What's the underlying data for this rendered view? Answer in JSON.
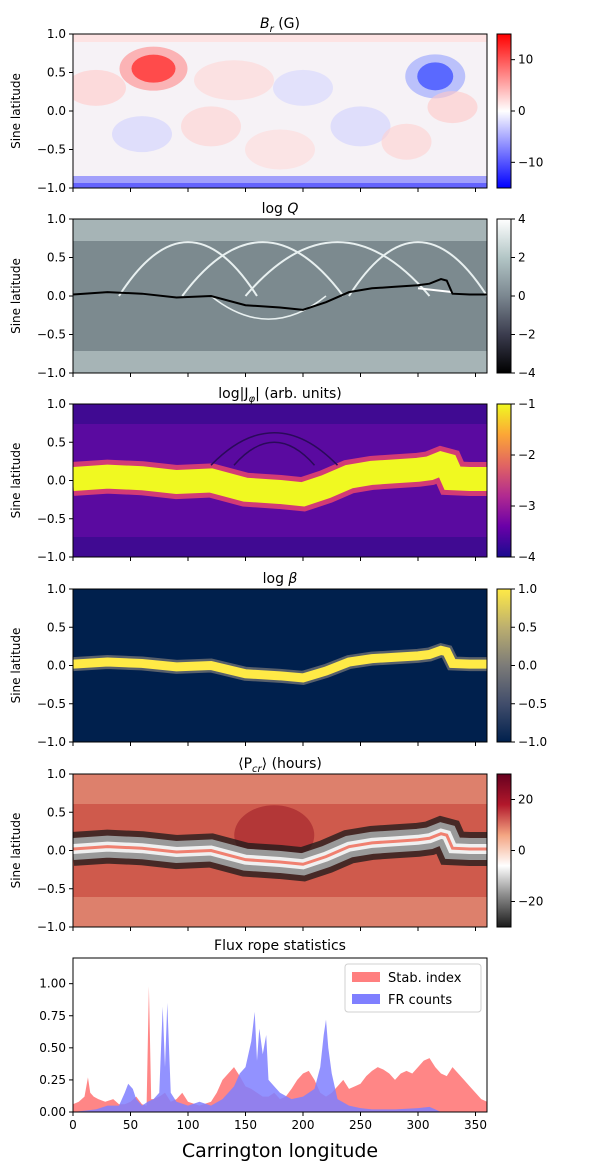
{
  "figure": {
    "panels": [
      {
        "id": "br",
        "title": "B_r (G)",
        "title_main": "B",
        "title_sub": "r",
        "title_rest": " (G)",
        "ylabel": "Sine latitude",
        "yticks": [
          "1.0",
          "0.5",
          "0.0",
          "−0.5",
          "−1.0"
        ],
        "colorbar": {
          "ticks": [
            "10",
            "0",
            "−10"
          ],
          "tick_values": [
            10,
            0,
            -10
          ],
          "range": [
            -15,
            15
          ],
          "colors": [
            "#0000ff",
            "#ffffff",
            "#ff0000"
          ]
        }
      },
      {
        "id": "logq",
        "title": "log Q",
        "title_main": "log ",
        "title_sub": "",
        "title_rest": "Q",
        "ylabel": "Sine latitude",
        "yticks": [
          "1.0",
          "0.5",
          "0.0",
          "−0.5",
          "−1.0"
        ],
        "colorbar": {
          "ticks": [
            "4",
            "2",
            "0",
            "−2",
            "−4"
          ],
          "tick_values": [
            4,
            2,
            0,
            -2,
            -4
          ],
          "range": [
            -4,
            4
          ],
          "colors": [
            "#000000",
            "#3b3c4e",
            "#7b8790",
            "#b3c6c6",
            "#ffffff"
          ]
        }
      },
      {
        "id": "jphi",
        "title": "log|J_φ| (arb. units)",
        "title_main": "log|J",
        "title_sub": "φ",
        "title_rest": "| (arb. units)",
        "ylabel": "Sine latitude",
        "yticks": [
          "1.0",
          "0.5",
          "0.0",
          "−0.5",
          "−1.0"
        ],
        "colorbar": {
          "ticks": [
            "−1",
            "−2",
            "−3",
            "−4"
          ],
          "tick_values": [
            -1,
            -2,
            -3,
            -4
          ],
          "range": [
            -4,
            -1
          ],
          "colors": [
            "#1a0b8f",
            "#6a00a8",
            "#b12a90",
            "#e16462",
            "#fca636",
            "#f0f921"
          ]
        }
      },
      {
        "id": "beta",
        "title": "log β",
        "title_main": "log ",
        "title_sub": "",
        "title_rest": "β",
        "ylabel": "Sine latitude",
        "yticks": [
          "1.0",
          "0.5",
          "0.0",
          "−0.5",
          "−1.0"
        ],
        "colorbar": {
          "ticks": [
            "1.0",
            "0.5",
            "0.0",
            "−0.5",
            "−1.0"
          ],
          "tick_values": [
            1,
            0.5,
            0,
            -0.5,
            -1
          ],
          "range": [
            -1,
            1
          ],
          "colors": [
            "#00204d",
            "#414d6b",
            "#7c7b78",
            "#bcaf6f",
            "#ffea46"
          ]
        }
      },
      {
        "id": "pcr",
        "title": "⟨P_cr⟩ (hours)",
        "title_main": "⟨P",
        "title_sub": "cr",
        "title_rest": "⟩ (hours)",
        "ylabel": "Sine latitude",
        "yticks": [
          "1.0",
          "0.5",
          "0.0",
          "−0.5",
          "−1.0"
        ],
        "colorbar": {
          "ticks": [
            "20",
            "0",
            "−20"
          ],
          "tick_values": [
            20,
            0,
            -20
          ],
          "range": [
            -30,
            30
          ],
          "colors": [
            "#1a1a1a",
            "#878787",
            "#ffffff",
            "#f4a582",
            "#b2182b",
            "#67001f"
          ]
        }
      }
    ],
    "stats": {
      "title": "Flux rope statistics",
      "xlabel": "Carrington longitude",
      "xticks": [
        "0",
        "50",
        "100",
        "150",
        "200",
        "250",
        "300",
        "350"
      ],
      "yticks": [
        "1.00",
        "0.75",
        "0.50",
        "0.25",
        "0.00"
      ]
    }
  },
  "chart_data": [
    {
      "type": "heatmap",
      "title": "B_r (G)",
      "ylabel": "Sine latitude",
      "xlim": [
        0,
        360
      ],
      "ylim": [
        -1,
        1
      ],
      "colorbar_range": [
        -15,
        15
      ]
    },
    {
      "type": "heatmap",
      "title": "log Q",
      "ylabel": "Sine latitude",
      "xlim": [
        0,
        360
      ],
      "ylim": [
        -1,
        1
      ],
      "colorbar_range": [
        -4,
        4
      ],
      "overlay_line": {
        "x": [
          0,
          30,
          60,
          90,
          120,
          150,
          180,
          200,
          220,
          240,
          260,
          280,
          300,
          310,
          320,
          325,
          330,
          345,
          360
        ],
        "y": [
          0.02,
          0.05,
          0.03,
          -0.02,
          0.0,
          -0.12,
          -0.15,
          -0.18,
          -0.08,
          0.05,
          0.1,
          0.12,
          0.14,
          0.16,
          0.22,
          0.2,
          0.03,
          0.02,
          0.02
        ]
      }
    },
    {
      "type": "heatmap",
      "title": "log|J_φ| (arb. units)",
      "ylabel": "Sine latitude",
      "xlim": [
        0,
        360
      ],
      "ylim": [
        -1,
        1
      ],
      "colorbar_range": [
        -4,
        -1
      ]
    },
    {
      "type": "heatmap",
      "title": "log β",
      "ylabel": "Sine latitude",
      "xlim": [
        0,
        360
      ],
      "ylim": [
        -1,
        1
      ],
      "colorbar_range": [
        -1,
        1
      ]
    },
    {
      "type": "heatmap",
      "title": "⟨P_cr⟩ (hours)",
      "ylabel": "Sine latitude",
      "xlim": [
        0,
        360
      ],
      "ylim": [
        -1,
        1
      ],
      "colorbar_range": [
        -30,
        30
      ]
    },
    {
      "type": "area",
      "title": "Flux rope statistics",
      "xlabel": "Carrington longitude",
      "xlim": [
        0,
        360
      ],
      "ylim": [
        0,
        1.2
      ],
      "legend_position": "top-right",
      "series": [
        {
          "name": "Stab. index",
          "color": "#ff7f7f",
          "x": [
            0,
            5,
            10,
            13,
            15,
            18,
            22,
            28,
            35,
            40,
            45,
            50,
            55,
            60,
            64,
            66,
            68,
            70,
            75,
            80,
            85,
            90,
            95,
            100,
            110,
            120,
            125,
            130,
            135,
            140,
            145,
            150,
            155,
            160,
            165,
            170,
            175,
            180,
            185,
            190,
            195,
            200,
            205,
            210,
            215,
            220,
            225,
            230,
            235,
            240,
            245,
            250,
            255,
            260,
            265,
            270,
            275,
            280,
            285,
            290,
            295,
            300,
            305,
            310,
            315,
            320,
            325,
            330,
            335,
            340,
            345,
            350,
            355,
            360
          ],
          "y": [
            0.06,
            0.08,
            0.12,
            0.27,
            0.15,
            0.12,
            0.1,
            0.08,
            0.1,
            0.06,
            0.06,
            0.08,
            0.12,
            0.06,
            0.05,
            0.98,
            0.1,
            0.1,
            0.12,
            0.15,
            0.08,
            0.1,
            0.15,
            0.08,
            0.05,
            0.08,
            0.15,
            0.25,
            0.3,
            0.35,
            0.28,
            0.2,
            0.18,
            0.15,
            0.12,
            0.12,
            0.15,
            0.1,
            0.12,
            0.18,
            0.25,
            0.3,
            0.32,
            0.25,
            0.15,
            0.12,
            0.15,
            0.2,
            0.25,
            0.18,
            0.2,
            0.22,
            0.28,
            0.32,
            0.35,
            0.33,
            0.3,
            0.25,
            0.3,
            0.32,
            0.3,
            0.35,
            0.4,
            0.42,
            0.35,
            0.3,
            0.28,
            0.35,
            0.3,
            0.25,
            0.2,
            0.15,
            0.1,
            0.08
          ]
        },
        {
          "name": "FR counts",
          "color": "#7f7fff",
          "x": [
            0,
            20,
            30,
            40,
            45,
            48,
            52,
            55,
            60,
            65,
            70,
            75,
            78,
            80,
            82,
            85,
            90,
            100,
            110,
            120,
            130,
            140,
            145,
            150,
            155,
            158,
            160,
            162,
            165,
            168,
            170,
            175,
            180,
            190,
            200,
            210,
            215,
            218,
            220,
            222,
            225,
            230,
            240,
            250,
            260,
            280,
            300,
            310,
            315,
            320,
            340,
            360
          ],
          "y": [
            0,
            0.02,
            0.05,
            0.05,
            0.15,
            0.22,
            0.18,
            0.1,
            0.05,
            0.08,
            0.1,
            0.15,
            0.82,
            0.35,
            0.85,
            0.15,
            0.08,
            0.05,
            0.08,
            0.05,
            0.1,
            0.2,
            0.3,
            0.35,
            0.55,
            0.78,
            0.4,
            0.65,
            0.45,
            0.6,
            0.25,
            0.2,
            0.15,
            0.1,
            0.12,
            0.18,
            0.35,
            0.6,
            0.72,
            0.5,
            0.3,
            0.1,
            0.05,
            0.03,
            0.02,
            0.02,
            0.03,
            0.04,
            0.02,
            0.0,
            0.0,
            0.0
          ]
        }
      ]
    }
  ]
}
